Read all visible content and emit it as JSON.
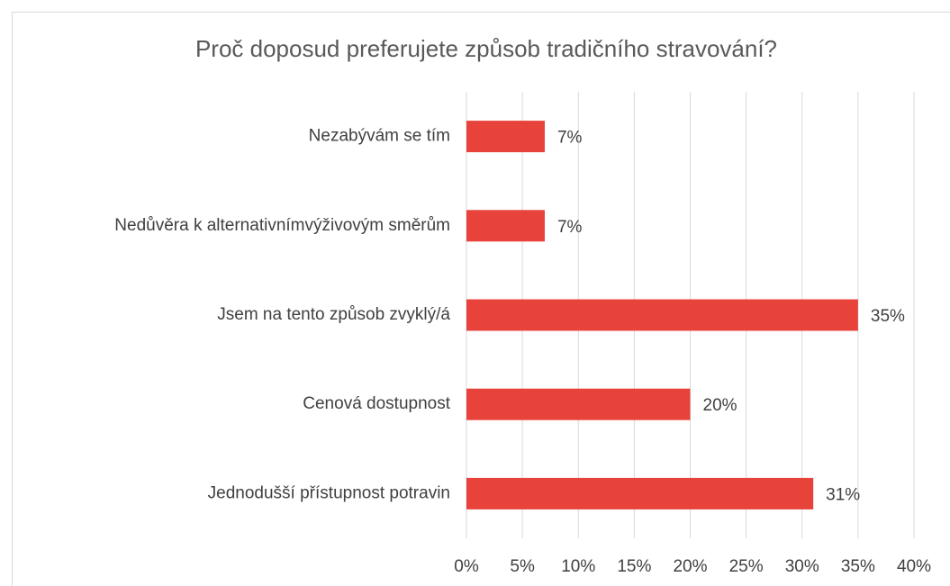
{
  "chart_data": {
    "type": "bar",
    "orientation": "horizontal",
    "title": "Proč doposud preferujete způsob tradičního stravování?",
    "categories": [
      "Nezabývám se tím",
      "Nedůvěra k alternativnímvýživovým směrům",
      "Jsem na tento způsob zvyklý/á",
      "Cenová dostupnost",
      "Jednodušší přístupnost potravin"
    ],
    "values": [
      7,
      7,
      35,
      20,
      31
    ],
    "value_labels": [
      "7%",
      "7%",
      "35%",
      "20%",
      "31%"
    ],
    "color": "#e8433a",
    "xlim": [
      0,
      40
    ],
    "xticks": [
      {
        "value": 0,
        "label": "0%"
      },
      {
        "value": 5,
        "label": "5%"
      },
      {
        "value": 10,
        "label": "10%"
      },
      {
        "value": 15,
        "label": "15%"
      },
      {
        "value": 20,
        "label": "20%"
      },
      {
        "value": 25,
        "label": "25%"
      },
      {
        "value": 30,
        "label": "30%"
      },
      {
        "value": 35,
        "label": "35%"
      },
      {
        "value": 40,
        "label": "40%"
      }
    ],
    "grid": true
  }
}
